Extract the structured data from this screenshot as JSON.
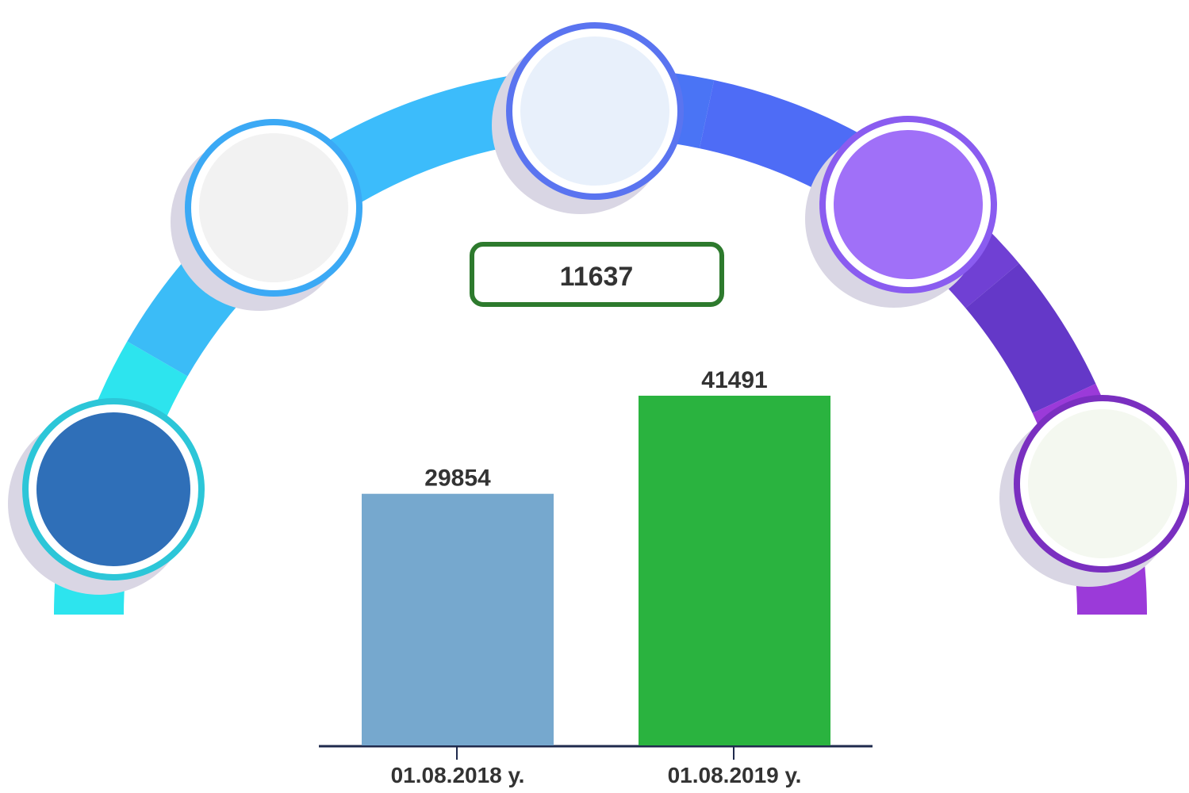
{
  "chart_data": {
    "type": "bar",
    "annotation": "11637",
    "categories": [
      "01.08.2018 у.",
      "01.08.2019 у."
    ],
    "values": [
      29854,
      41491
    ],
    "colors": [
      "#76a8ce",
      "#2ab33f"
    ]
  }
}
